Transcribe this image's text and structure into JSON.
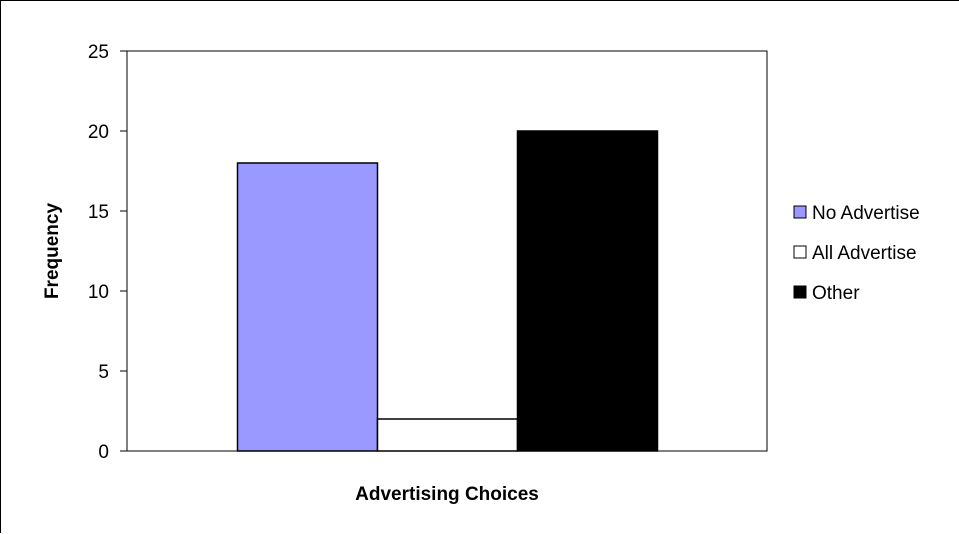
{
  "chart_data": {
    "type": "bar",
    "title": "",
    "xlabel": "Advertising Choices",
    "ylabel": "Frequency",
    "ylim": [
      0,
      25
    ],
    "yticks": [
      0,
      5,
      10,
      15,
      20,
      25
    ],
    "grid": false,
    "legend_position": "right",
    "series": [
      {
        "name": "No Advertise",
        "value": 18,
        "color": "#9999ff"
      },
      {
        "name": "All Advertise",
        "value": 2,
        "color": "#ffffff"
      },
      {
        "name": "Other",
        "value": 20,
        "color": "#000000"
      }
    ]
  }
}
